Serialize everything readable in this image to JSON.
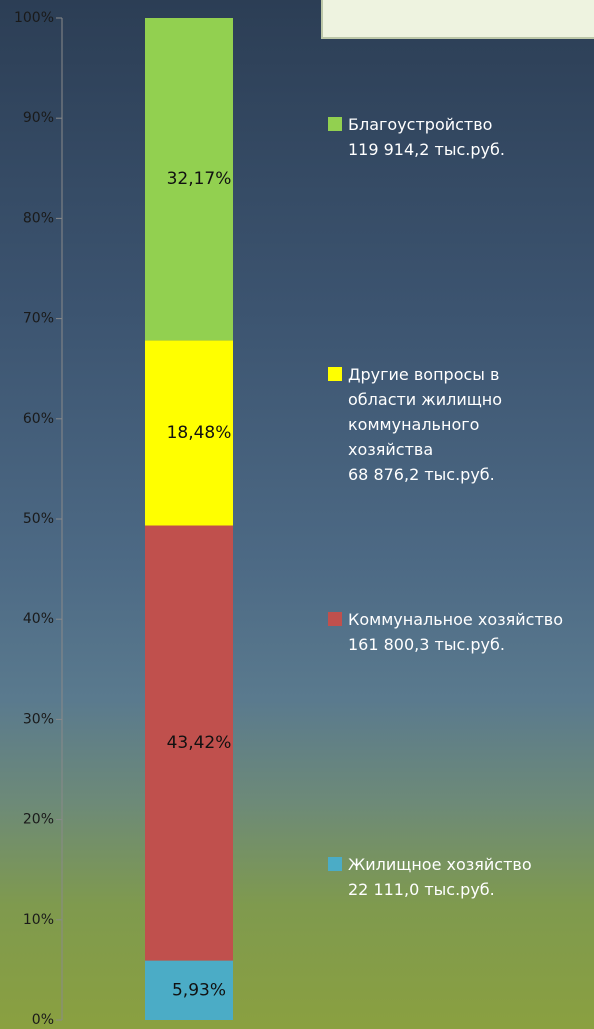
{
  "chart_data": {
    "type": "stacked_bar_100",
    "series": [
      {
        "name": "Жилищное хозяйство",
        "amount_label": "22 111,0 тыс.руб.",
        "color": "#4bacc6",
        "values": [
          5.93
        ],
        "value_labels": [
          "5,93%"
        ]
      },
      {
        "name": "Коммунальное хозяйство",
        "amount_label": "161 800,3 тыс.руб.",
        "color": "#c0504d",
        "values": [
          43.42
        ],
        "value_labels": [
          "43,42%"
        ]
      },
      {
        "name": "Другие вопросы в области жилищно коммунального хозяйства",
        "amount_label": "68 876,2 тыс.руб.",
        "color": "#ffff00",
        "values": [
          18.48
        ],
        "value_labels": [
          "18,48%"
        ]
      },
      {
        "name": "Благоустройство",
        "amount_label": "119 914,2 тыс.руб.",
        "color": "#92d050",
        "values": [
          32.17
        ],
        "value_labels": [
          "32,17%"
        ]
      }
    ],
    "ylim": [
      0,
      100
    ],
    "yticks": [
      {
        "value": 0,
        "label": "0%"
      },
      {
        "value": 10,
        "label": "10%"
      },
      {
        "value": 20,
        "label": "20%"
      },
      {
        "value": 30,
        "label": "30%"
      },
      {
        "value": 40,
        "label": "40%"
      },
      {
        "value": 50,
        "label": "50%"
      },
      {
        "value": 60,
        "label": "60%"
      },
      {
        "value": 70,
        "label": "70%"
      },
      {
        "value": 80,
        "label": "80%"
      },
      {
        "value": 90,
        "label": "90%"
      },
      {
        "value": 100,
        "label": "100%"
      }
    ]
  }
}
